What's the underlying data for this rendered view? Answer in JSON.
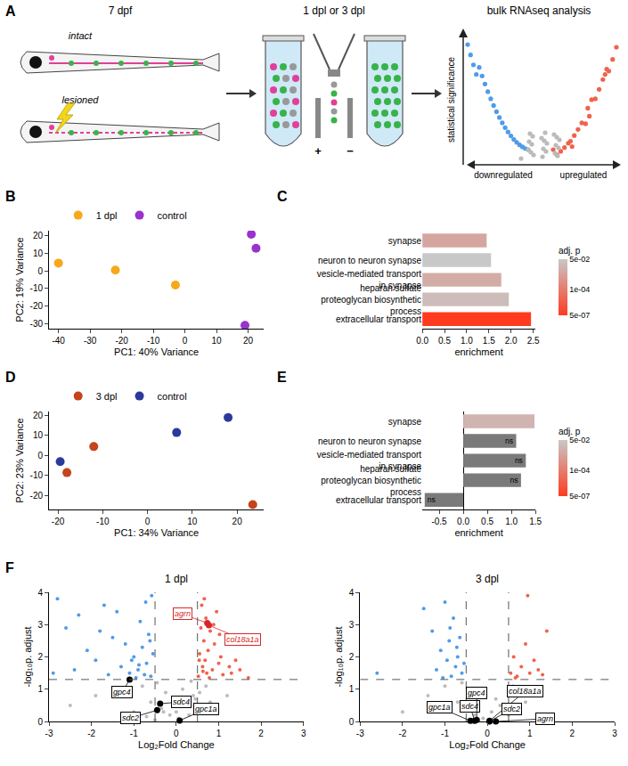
{
  "panel_a": {
    "label": "A",
    "steps": [
      {
        "title": "7 dpf",
        "items": [
          "intact",
          "lesioned"
        ]
      },
      {
        "title": "1 dpl or 3 dpl",
        "signs": [
          "+",
          "−"
        ]
      },
      {
        "title": "bulk RNAseq analysis",
        "y_label": "statistical significance",
        "x_labels": [
          "downregulated",
          "upregulated"
        ]
      }
    ]
  },
  "chart_data": [
    {
      "label": "B",
      "type": "scatter",
      "x_title": "PC1: 40% Variance",
      "y_title": "PC2: 19% Variance",
      "series": [
        {
          "name": "1 dpl",
          "color": "#f7a81b",
          "x": [
            -40,
            -22,
            -3
          ],
          "values": [
            4.5,
            0.5,
            -8
          ]
        },
        {
          "name": "control",
          "color": "#9a32cd",
          "x": [
            21,
            22.5,
            19
          ],
          "values": [
            21,
            13,
            -31
          ]
        }
      ],
      "xlim": [
        -43,
        25
      ],
      "xticks": [
        -40,
        -30,
        -20,
        -10,
        0,
        10,
        20
      ],
      "ylim": [
        -33,
        23
      ],
      "yticks": [
        -30,
        -20,
        -10,
        0,
        10,
        20
      ],
      "legend": "top"
    },
    {
      "label": "C",
      "type": "bar",
      "orientation": "horizontal",
      "categories": [
        "synapse",
        "neuron to neuron synapse",
        "vesicle-mediated transport in synapse",
        "heparan sulfate proteoglycan biosynthetic process",
        "extracellular transport"
      ],
      "values": [
        1.45,
        1.55,
        1.78,
        1.95,
        2.45
      ],
      "padj": [
        0.003,
        0.05,
        0.005,
        0.02,
        5e-07
      ],
      "x_title": "enrichment",
      "xlim": [
        0,
        2.55
      ],
      "xticks": [
        {
          "value": 0,
          "label": "0.0"
        },
        0.5,
        {
          "value": 1,
          "label": "1.0"
        },
        1.5,
        {
          "value": 2,
          "label": "2.0"
        },
        2.5
      ],
      "colorbar": {
        "title": "adj. p",
        "log": true,
        "range": [
          5e-07,
          0.05
        ],
        "colors": [
          "#ff3b1f",
          "#c8c8c8"
        ],
        "ticks": [
          {
            "value": 5e-07,
            "label": "5e-07"
          },
          {
            "value": 0.0001,
            "label": "1e-04"
          },
          {
            "value": 0.05,
            "label": "5e-02"
          }
        ]
      }
    },
    {
      "label": "D",
      "type": "scatter",
      "x_title": "PC1: 34% Variance",
      "y_title": "PC2: 23% Variance",
      "series": [
        {
          "name": "3 dpl",
          "color": "#c4441c",
          "x": [
            -18,
            -12,
            23.5
          ],
          "values": [
            -8.5,
            4.5,
            -24.5
          ]
        },
        {
          "name": "control",
          "color": "#2b3a9a",
          "x": [
            -19.5,
            6.5,
            18
          ],
          "values": [
            -3,
            11.5,
            19
          ]
        }
      ],
      "xlim": [
        -22,
        26
      ],
      "xticks": [
        -20,
        -10,
        0,
        10,
        20
      ],
      "ylim": [
        -27,
        22
      ],
      "yticks": [
        -20,
        -10,
        0,
        10,
        20
      ],
      "legend": "top"
    },
    {
      "label": "E",
      "type": "bar",
      "orientation": "horizontal",
      "categories": [
        "synapse",
        "neuron to neuron synapse",
        "vesicle-mediated transport in synapse",
        "heparan sulfate proteoglycan biosynthetic process",
        "extracellular transport"
      ],
      "values": [
        1.48,
        1.1,
        1.3,
        1.2,
        -0.8
      ],
      "padj": [
        0.01,
        null,
        null,
        null,
        null
      ],
      "labels": [
        null,
        "ns",
        "ns",
        "ns",
        "ns"
      ],
      "x_title": "enrichment",
      "xlim": [
        -0.85,
        1.5
      ],
      "xticks": [
        -0.5,
        {
          "value": 0,
          "label": "0.0"
        },
        0.5,
        {
          "value": 1,
          "label": "1.0"
        },
        1.5
      ],
      "colorbar": {
        "title": "adj. p",
        "log": true,
        "range": [
          5e-07,
          0.05
        ],
        "colors": [
          "#ff3b1f",
          "#c8c8c8"
        ],
        "ticks": [
          {
            "value": 5e-07,
            "label": "5e-07"
          },
          {
            "value": 0.0001,
            "label": "1e-04"
          },
          {
            "value": 0.05,
            "label": "5e-02"
          }
        ]
      }
    },
    {
      "label": "F",
      "type": "scatter",
      "title": "1 dpl",
      "x_title": "Log₂Fold Change",
      "y_title": "-log₁₀p. adjust",
      "series": [
        {
          "color": "#4f9be8",
          "x": [
            -2.8,
            -2.6,
            -2.3,
            -2.1,
            -1.9,
            -1.7,
            -1.5,
            -1.3,
            -1.2,
            -1.1,
            -1.0,
            -0.9,
            -0.85,
            -0.8,
            -0.75,
            -0.7,
            -0.65,
            -0.6,
            -0.55,
            -2.4,
            -1.8,
            -1.4,
            -1.05,
            -0.95,
            -0.72,
            -0.62,
            -2.9,
            -1.6,
            -0.88,
            -0.58
          ],
          "values": [
            3.8,
            2.9,
            3.3,
            2.2,
            1.9,
            3.6,
            2.6,
            1.7,
            2.4,
            1.5,
            2.0,
            1.6,
            3.1,
            2.3,
            1.45,
            1.8,
            2.7,
            1.4,
            2.1,
            1.6,
            2.8,
            3.4,
            1.9,
            1.35,
            3.7,
            2.5,
            1.5,
            1.45,
            1.75,
            3.9
          ]
        },
        {
          "color": "#f0624d",
          "x": [
            0.52,
            0.55,
            0.6,
            0.62,
            0.65,
            0.68,
            0.7,
            0.72,
            0.75,
            0.8,
            0.85,
            0.9,
            0.95,
            1.0,
            1.05,
            1.1,
            1.2,
            1.3,
            1.4,
            1.5,
            1.7,
            1.95,
            0.58,
            0.66,
            0.78,
            0.88,
            1.02,
            1.25,
            0.54,
            0.63
          ],
          "values": [
            1.4,
            2.1,
            3.6,
            1.7,
            2.5,
            1.9,
            3.2,
            1.5,
            2.2,
            2.8,
            1.6,
            2.4,
            3.4,
            1.8,
            2.0,
            1.45,
            2.6,
            1.5,
            1.9,
            1.6,
            1.35,
            2.4,
            2.9,
            3.8,
            1.35,
            3.0,
            2.7,
            1.7,
            1.9,
            1.55
          ]
        },
        {
          "color": "#bbbbbb",
          "x": [
            -2.5,
            -1.9,
            -1.4,
            -1.0,
            -0.8,
            -0.6,
            -0.45,
            -0.35,
            -0.25,
            -0.15,
            -0.05,
            0.05,
            0.15,
            0.25,
            0.35,
            0.45,
            0.55,
            0.7,
            0.9,
            1.2,
            -1.2,
            -0.7,
            -0.3,
            0.1,
            0.3,
            0.6,
            0.8,
            -0.5,
            0.0,
            0.4
          ],
          "values": [
            0.5,
            0.8,
            1.0,
            0.3,
            1.1,
            0.6,
            1.2,
            0.4,
            0.9,
            0.2,
            0.6,
            0.1,
            1.0,
            0.5,
            1.25,
            0.7,
            0.9,
            1.1,
            0.4,
            0.8,
            0.2,
            0.15,
            0.3,
            0.5,
            0.2,
            0.35,
            0.6,
            0.05,
            0.3,
            0.8
          ]
        }
      ],
      "genes": [
        {
          "name": "agrn",
          "x": 0.73,
          "y": 3.05,
          "color": "#d62728"
        },
        {
          "name": "col18a1a",
          "x": 0.77,
          "y": 2.98,
          "color": "#d62728"
        },
        {
          "name": "gpc4",
          "x": -1.1,
          "y": 1.3,
          "color": "#000000"
        },
        {
          "name": "sdc4",
          "x": -0.38,
          "y": 0.55,
          "color": "#000000"
        },
        {
          "name": "sdc2",
          "x": -0.45,
          "y": 0.35,
          "color": "#000000"
        },
        {
          "name": "gpc1a",
          "x": 0.08,
          "y": 0.03,
          "color": "#000000"
        }
      ],
      "reference_lines": {
        "x": [
          -0.5,
          0.5
        ],
        "y": [
          1.3
        ]
      },
      "xlim": [
        -3,
        3
      ],
      "xticks": [
        -3,
        -2,
        -1,
        0,
        1,
        2,
        3
      ],
      "ylim": [
        0,
        4
      ],
      "yticks": [
        0,
        1,
        2,
        3,
        4
      ]
    },
    {
      "type": "scatter",
      "title": "3 dpl",
      "x_title": "Log₂Fold Change",
      "y_title": "-log₁₀p. adjust",
      "series": [
        {
          "color": "#4f9be8",
          "x": [
            -2.6,
            -1.5,
            -1.3,
            -1.2,
            -1.1,
            -1.0,
            -0.95,
            -0.9,
            -0.85,
            -0.8,
            -0.75,
            -0.7,
            -0.65,
            -0.6,
            -0.55,
            -1.05,
            -0.88,
            -0.72
          ],
          "values": [
            1.5,
            3.5,
            2.8,
            1.6,
            2.2,
            3.7,
            1.9,
            2.5,
            1.4,
            3.2,
            1.7,
            2.0,
            2.6,
            1.5,
            1.8,
            1.35,
            2.9,
            2.3
          ]
        },
        {
          "color": "#f0624d",
          "x": [
            0.55,
            0.62,
            0.7,
            0.8,
            0.9,
            1.0,
            1.1,
            1.2,
            1.4,
            0.66,
            0.95,
            1.3
          ],
          "values": [
            1.5,
            2.0,
            1.4,
            1.7,
            2.4,
            1.5,
            1.9,
            1.6,
            2.8,
            1.35,
            3.9,
            1.45
          ]
        },
        {
          "color": "#bbbbbb",
          "x": [
            -2.0,
            -1.4,
            -1.0,
            -0.7,
            -0.5,
            -0.3,
            -0.1,
            0.1,
            0.3,
            0.5,
            0.7,
            0.9,
            1.2,
            -0.6,
            0.2,
            0.6
          ],
          "values": [
            0.3,
            0.8,
            1.1,
            0.6,
            0.4,
            0.2,
            0.1,
            0.3,
            0.5,
            0.2,
            0.9,
            0.6,
            1.0,
            1.2,
            0.7,
            1.1
          ]
        }
      ],
      "genes": [
        {
          "name": "gpc1a",
          "x": -0.4,
          "y": 0.02,
          "color": "#000000"
        },
        {
          "name": "sdc4",
          "x": -0.3,
          "y": 0.02,
          "color": "#000000"
        },
        {
          "name": "gpc4",
          "x": -0.25,
          "y": 0.05,
          "color": "#000000"
        },
        {
          "name": "col18a1a",
          "x": 0.05,
          "y": 0.02,
          "color": "#000000"
        },
        {
          "name": "sdc2",
          "x": 0.05,
          "y": 0.0,
          "color": "#000000"
        },
        {
          "name": "agrn",
          "x": 0.2,
          "y": 0.0,
          "color": "#000000"
        }
      ],
      "reference_lines": {
        "x": [
          -0.5,
          0.5
        ],
        "y": [
          1.3
        ]
      },
      "xlim": [
        -3,
        3
      ],
      "xticks": [
        -3,
        -2,
        -1,
        0,
        1,
        2,
        3
      ],
      "ylim": [
        0,
        4
      ],
      "yticks": [
        0,
        1,
        2,
        3,
        4
      ]
    }
  ]
}
